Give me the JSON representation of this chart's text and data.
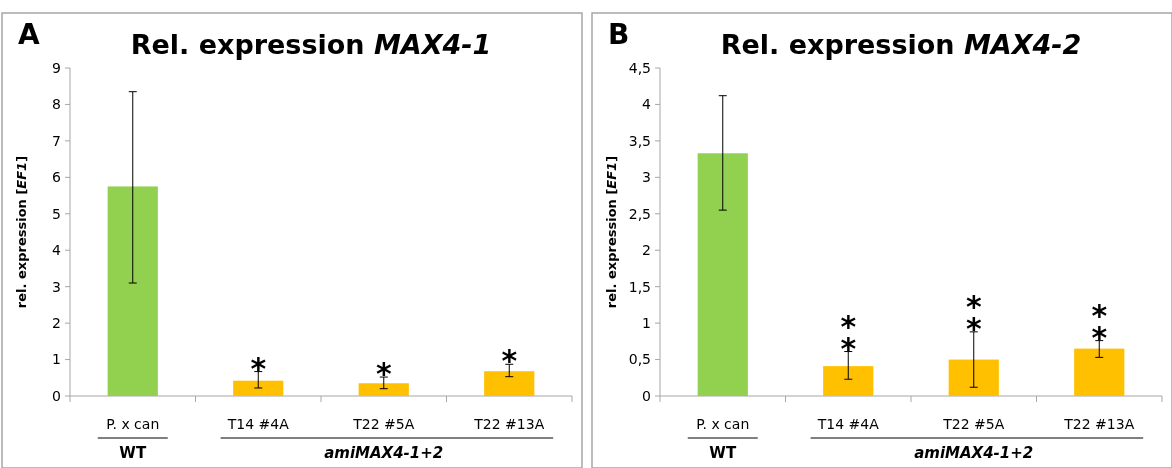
{
  "chart_data": [
    {
      "type": "bar",
      "title": "Rel. expression MAX4-1",
      "ylabel": "rel. expression [EF1]",
      "categories": [
        "P. x can",
        "T14 #4A",
        "T22 #5A",
        "T22 #13A"
      ],
      "values": [
        5.75,
        0.42,
        0.35,
        0.68
      ],
      "colors": [
        "#92d050",
        "#ffc000",
        "#ffc000",
        "#ffc000"
      ],
      "errors": [
        [
          3.1,
          8.35
        ],
        [
          0.22,
          0.67
        ],
        [
          0.2,
          0.52
        ],
        [
          0.53,
          0.87
        ]
      ],
      "ylim": [
        0,
        9
      ],
      "yticks": [
        0,
        1,
        2,
        3,
        4,
        5,
        6,
        7,
        8,
        9
      ],
      "grid": false,
      "annotations": [
        "A",
        "WT",
        "amiMAX4-1+2",
        {
          "text": "*",
          "x": "T14 #4A",
          "y": 0.67
        },
        {
          "text": "*",
          "x": "T22 #5A",
          "y": 0.52
        },
        {
          "text": "*",
          "x": "T22 #13A",
          "y": 0.87
        }
      ]
    },
    {
      "type": "bar",
      "title": "Rel. expression MAX4-2",
      "ylabel": "rel. expression [EF1]",
      "categories": [
        "P. x can",
        "T14 #4A",
        "T22 #5A",
        "T22 #13A"
      ],
      "values": [
        3.33,
        0.41,
        0.5,
        0.65
      ],
      "colors": [
        "#92d050",
        "#ffc000",
        "#ffc000",
        "#ffc000"
      ],
      "errors": [
        [
          2.55,
          4.12
        ],
        [
          0.23,
          0.61
        ],
        [
          0.12,
          0.88
        ],
        [
          0.53,
          0.76
        ]
      ],
      "ylim": [
        0,
        4.5
      ],
      "yticks": [
        0,
        {
          "value": 0.5,
          "label": "0,5"
        },
        1,
        {
          "value": 1.5,
          "label": "1,5"
        },
        2,
        {
          "value": 2.5,
          "label": "2,5"
        },
        3,
        {
          "value": 3.5,
          "label": "3,5"
        },
        4,
        {
          "value": 4.5,
          "label": "4,5"
        }
      ],
      "grid": false,
      "annotations": [
        "B",
        "WT",
        "amiMAX4-1+2",
        {
          "text": "*\n*",
          "x": "T14 #4A",
          "y": 0.61
        },
        {
          "text": "*\n*",
          "x": "T22 #5A",
          "y": 0.88
        },
        {
          "text": "*\n*",
          "x": "T22 #13A",
          "y": 0.76
        }
      ]
    }
  ]
}
